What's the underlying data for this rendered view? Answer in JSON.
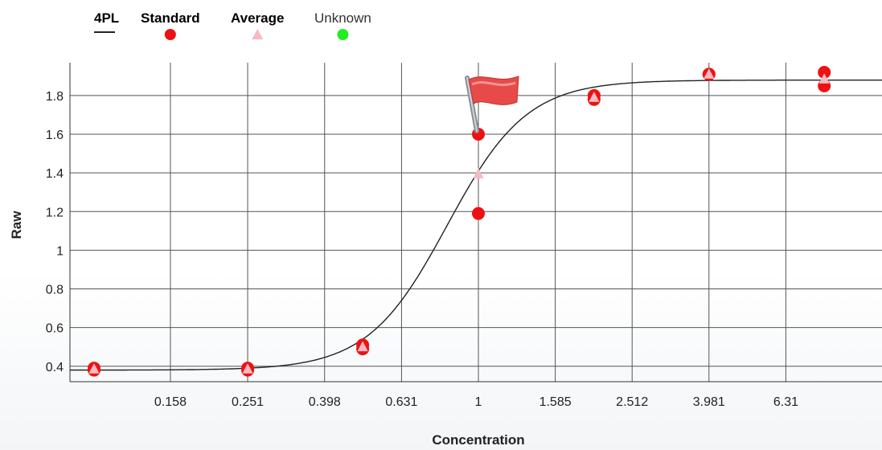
{
  "chart_data": {
    "type": "scatter",
    "title": "",
    "xlabel": "Concentration",
    "ylabel": "Raw",
    "x_scale": "log",
    "xlim": [
      0.1,
      10
    ],
    "ylim": [
      0.32,
      1.97
    ],
    "x_ticks": [
      "0.158",
      "0.251",
      "0.398",
      "0.631",
      "1",
      "1.585",
      "2.512",
      "3.981",
      "6.31"
    ],
    "y_ticks": [
      "0.4",
      "0.6",
      "0.8",
      "1",
      "1.2",
      "1.4",
      "1.6",
      "1.8"
    ],
    "grid": true,
    "legend_position": "top-left",
    "legend": [
      {
        "label": "4PL",
        "marker": "line",
        "color": "#222222"
      },
      {
        "label": "Standard",
        "marker": "circle",
        "color": "#ee1111"
      },
      {
        "label": "Average",
        "marker": "triangle",
        "color": "#f7b9c4"
      },
      {
        "label": "Unknown",
        "marker": "circle",
        "color": "#22ee22"
      }
    ],
    "series": [
      {
        "name": "4PL",
        "kind": "curve",
        "params": {
          "bottom": 0.38,
          "top": 1.88,
          "ec50": 0.83,
          "hill": 4.2
        }
      },
      {
        "name": "Standard",
        "kind": "points",
        "x": [
          0.1,
          0.1,
          0.251,
          0.251,
          0.5,
          0.5,
          1,
          1,
          2,
          2,
          3.981,
          3.981,
          7.943,
          7.943
        ],
        "y": [
          0.39,
          0.38,
          0.39,
          0.38,
          0.49,
          0.51,
          1.6,
          1.19,
          1.8,
          1.78,
          1.91,
          1.91,
          1.92,
          1.85
        ]
      },
      {
        "name": "Average",
        "kind": "points",
        "x": [
          0.1,
          0.251,
          0.5,
          1,
          2,
          3.981,
          7.943
        ],
        "y": [
          0.385,
          0.385,
          0.5,
          1.395,
          1.79,
          1.91,
          1.885
        ]
      }
    ],
    "annotations": [
      {
        "type": "flag-icon",
        "x": 1,
        "y": 1.6,
        "color": "#e84a4a"
      }
    ]
  }
}
